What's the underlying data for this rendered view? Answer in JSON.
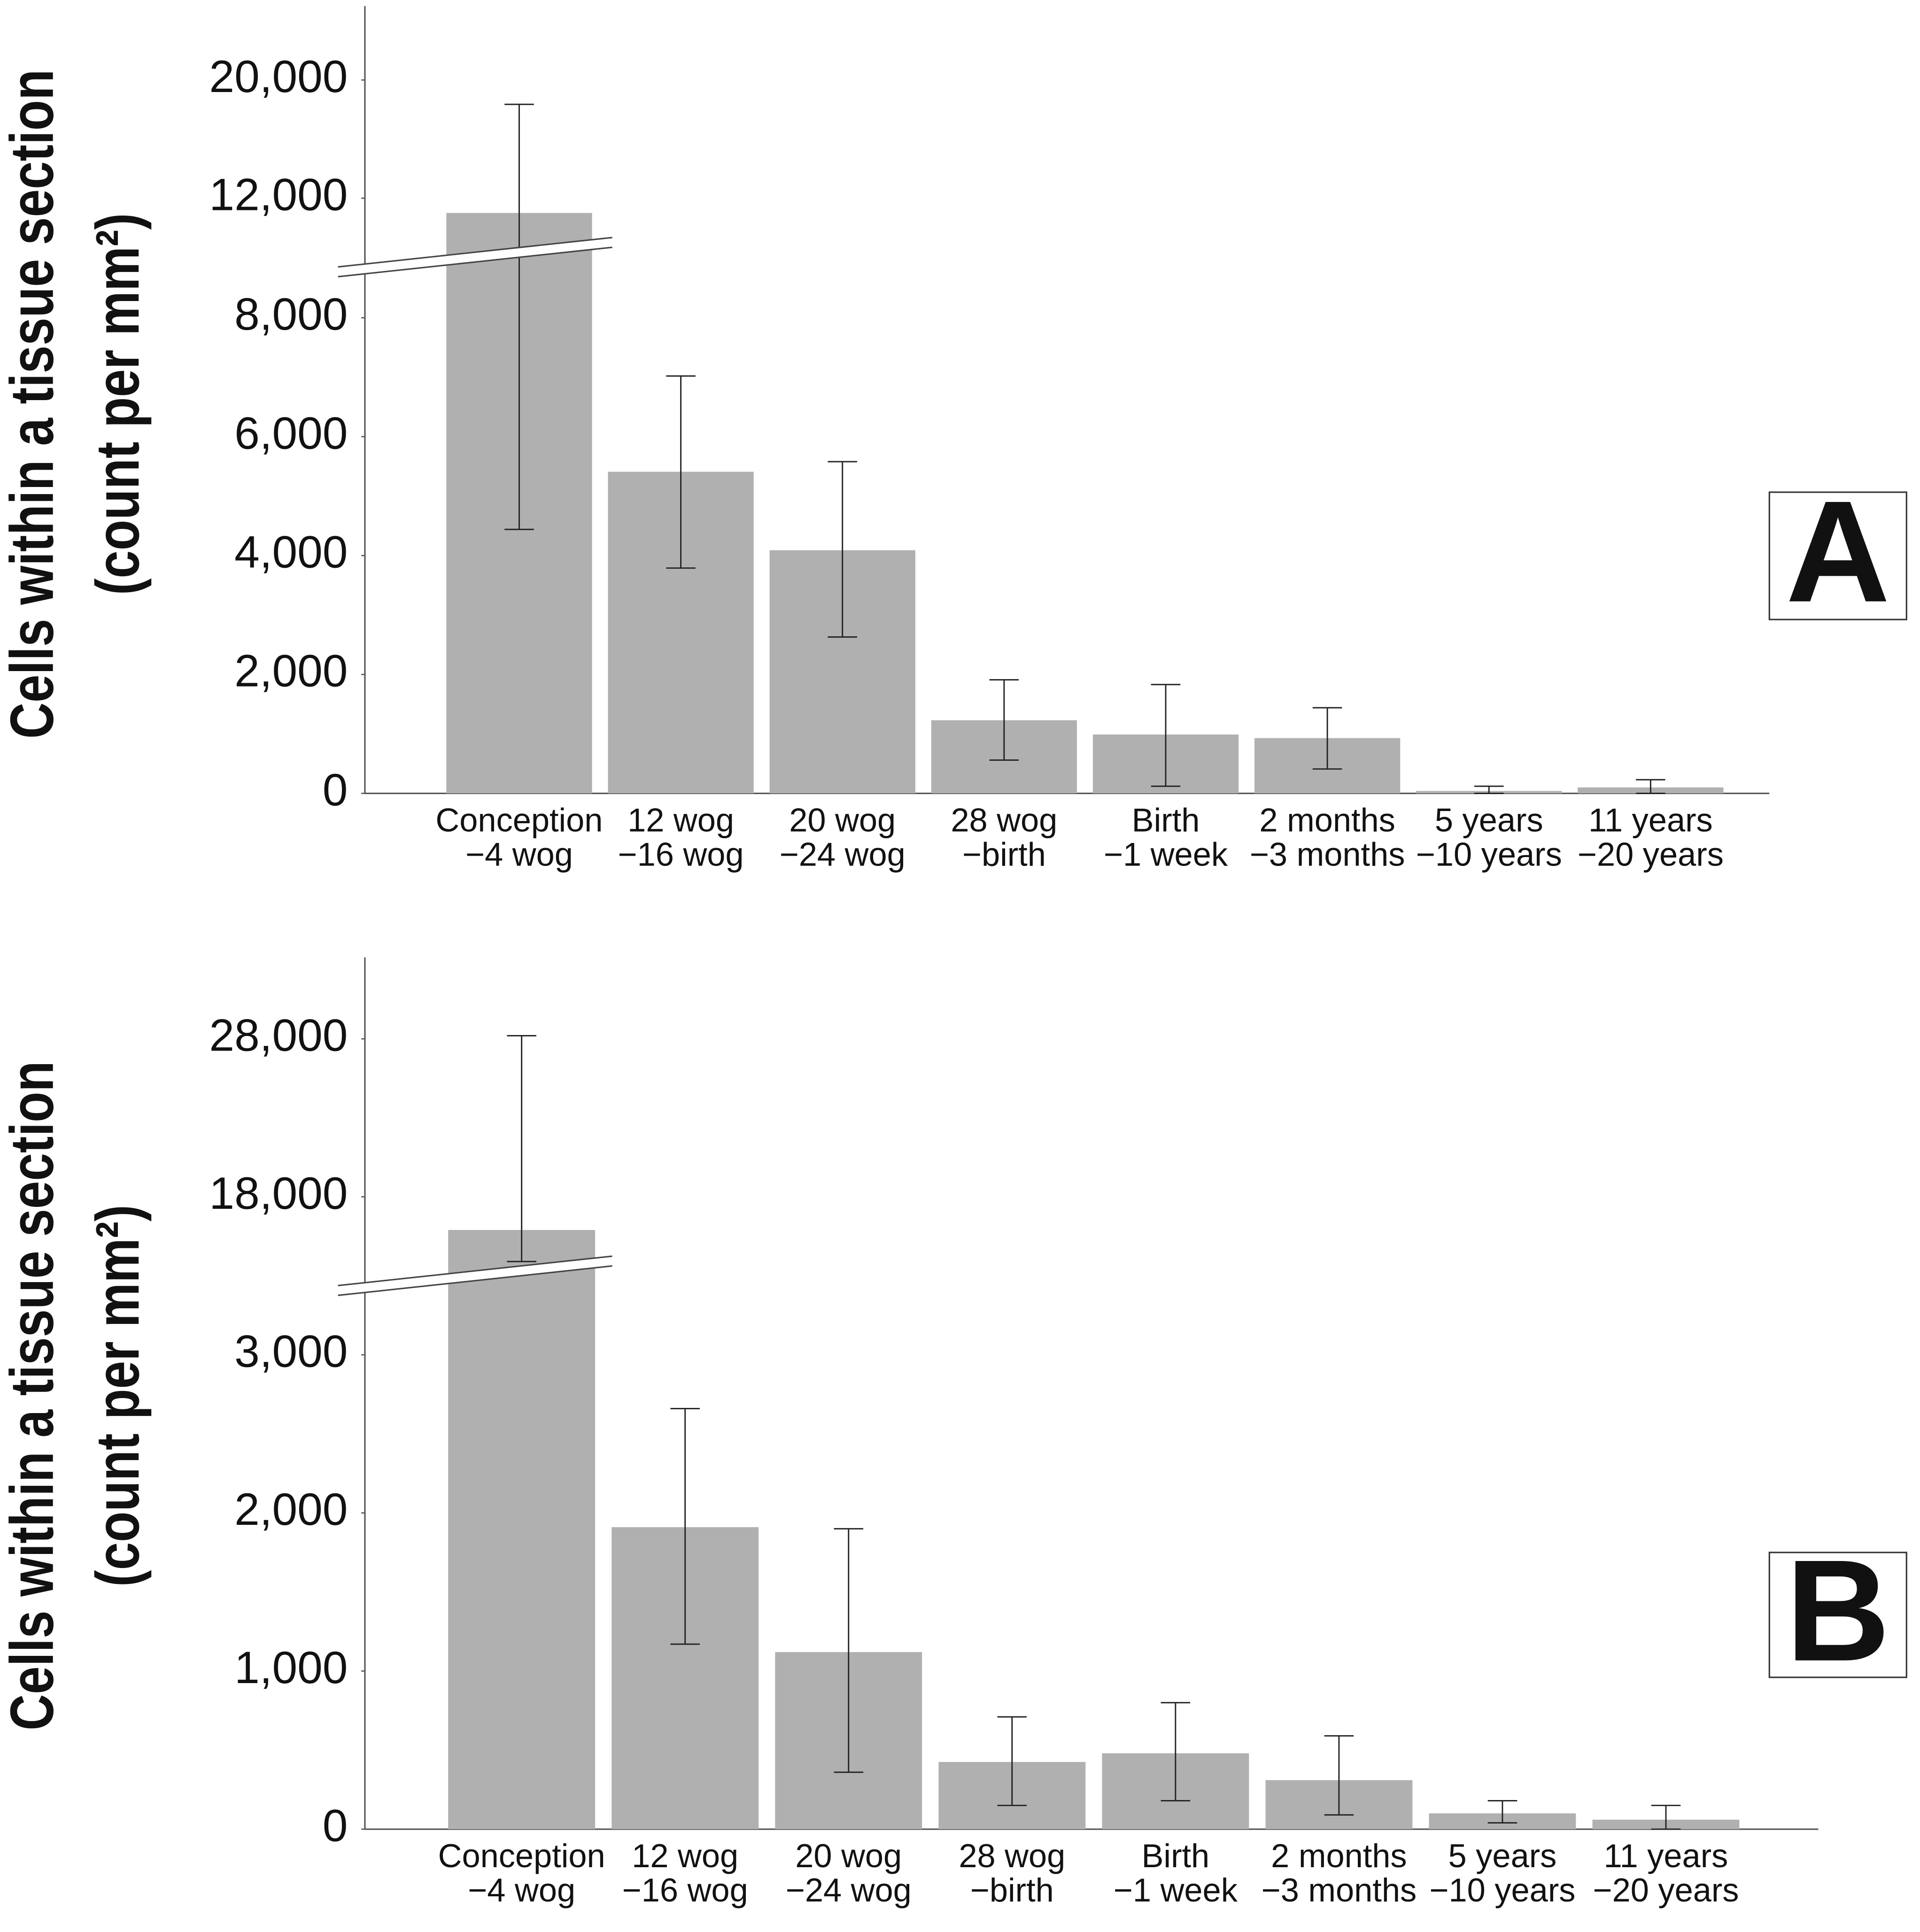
{
  "chart_data": [
    {
      "type": "bar",
      "panel_label": "A",
      "y_label": [
        "Cells within a tissue section",
        "(count per mm²)"
      ],
      "categories": [
        [
          "Conception",
          "−4 wog"
        ],
        [
          "12 wog",
          "−16 wog"
        ],
        [
          "20 wog",
          "−24 wog"
        ],
        [
          "28 wog",
          "−birth"
        ],
        [
          "Birth",
          "−1 week"
        ],
        [
          "2 months",
          "−3 months"
        ],
        [
          "5 years",
          "−10 years"
        ],
        [
          "11 years",
          "−20 years"
        ]
      ],
      "values": [
        11000,
        5410,
        4090,
        1230,
        990,
        930,
        40,
        100
      ],
      "err_low": [
        4440,
        3790,
        2630,
        560,
        120,
        410,
        0,
        0
      ],
      "err_high": [
        18350,
        7020,
        5580,
        1910,
        1830,
        1440,
        120,
        230
      ],
      "color": "#b0b0b0",
      "axis_break": true,
      "y_segments": [
        {
          "ylim": [
            0,
            9000
          ],
          "yticks": [
            0,
            {
              "value": 2000,
              "label": "2,000"
            },
            {
              "value": 4000,
              "label": "4,000"
            },
            {
              "value": 6000,
              "label": "6,000"
            },
            {
              "value": 8000,
              "label": "8,000"
            }
          ]
        },
        {
          "ylim": [
            10000,
            25000
          ],
          "yticks": [
            {
              "value": 12000,
              "label": "12,000"
            },
            {
              "value": 20000,
              "label": "20,000"
            }
          ]
        }
      ]
    },
    {
      "type": "bar",
      "panel_label": "B",
      "y_label": [
        "Cells within a tissue section",
        "(count per mm²)"
      ],
      "categories": [
        [
          "Conception",
          "−4 wog"
        ],
        [
          "12 wog",
          "−16 wog"
        ],
        [
          "20 wog",
          "−24 wog"
        ],
        [
          "28 wog",
          "−birth"
        ],
        [
          "Birth",
          "−1 week"
        ],
        [
          "2 months",
          "−3 months"
        ],
        [
          "5 years",
          "−10 years"
        ],
        [
          "11 years",
          "−20 years"
        ]
      ],
      "values": [
        15900,
        1910,
        1120,
        425,
        480,
        310,
        100,
        60
      ],
      "err_low": [
        13900,
        1170,
        360,
        150,
        180,
        90,
        40,
        0
      ],
      "err_high": [
        28200,
        2660,
        1900,
        710,
        800,
        590,
        180,
        150
      ],
      "color": "#b0b0b0",
      "axis_break": true,
      "y_segments": [
        {
          "ylim": [
            0,
            3500
          ],
          "yticks": [
            0,
            {
              "value": 1000,
              "label": "1,000"
            },
            {
              "value": 2000,
              "label": "2,000"
            },
            {
              "value": 3000,
              "label": "3,000"
            }
          ]
        },
        {
          "ylim": [
            13000,
            33000
          ],
          "yticks": [
            {
              "value": 18000,
              "label": "18,000"
            },
            {
              "value": 28000,
              "label": "28,000"
            }
          ]
        }
      ]
    }
  ]
}
